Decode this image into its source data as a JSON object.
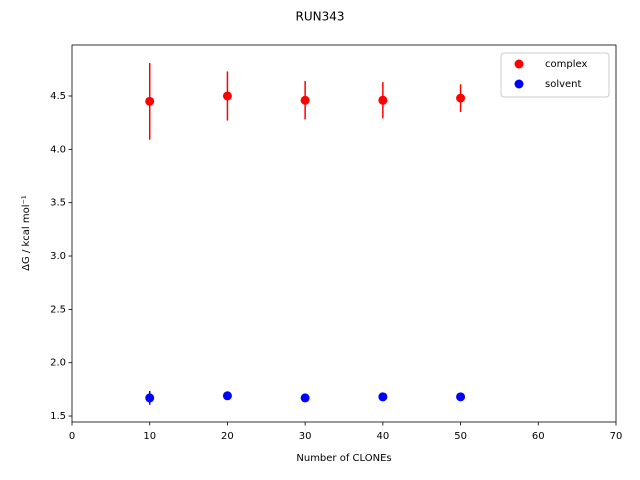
{
  "chart_data": {
    "type": "errorbar-scatter",
    "title": "RUN343",
    "xlabel": "Number of CLONEs",
    "ylabel": "ΔG / kcal mol⁻¹",
    "x": [
      10,
      20,
      30,
      40,
      50
    ],
    "series": [
      {
        "name": "complex",
        "color": "#ff0000",
        "values": [
          4.45,
          4.5,
          4.46,
          4.46,
          4.48
        ],
        "errors": [
          0.36,
          0.23,
          0.18,
          0.17,
          0.13
        ]
      },
      {
        "name": "solvent",
        "color": "#0000ff",
        "values": [
          1.67,
          1.69,
          1.67,
          1.68,
          1.68
        ],
        "errors": [
          0.065,
          0.02,
          0.01,
          0.01,
          0.01
        ]
      }
    ],
    "xlim": [
      0,
      70
    ],
    "xticks": [
      0,
      10,
      20,
      30,
      40,
      50,
      60,
      70
    ],
    "ylim": [
      1.444,
      4.978
    ],
    "yticks": [
      1.5,
      {
        "value": 2.0,
        "label": "2.0"
      },
      2.5,
      {
        "value": 3.0,
        "label": "3.0"
      },
      3.5,
      {
        "value": 4.0,
        "label": "4.0"
      },
      4.5
    ],
    "legend": "upper right"
  }
}
